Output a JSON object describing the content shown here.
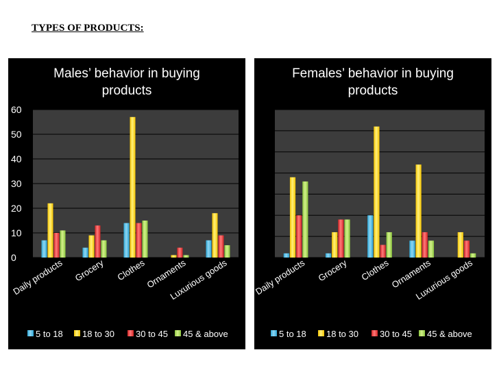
{
  "heading": "TYPES OF PRODUCTS:",
  "chart_data": [
    {
      "type": "bar",
      "title": "Males’ behavior in buying products",
      "title_lines": [
        "Males’ behavior in buying",
        "products"
      ],
      "categories": [
        "Daily products",
        "Grocery",
        "Clothes",
        "Ornaments",
        "Luxurious goods"
      ],
      "series": [
        {
          "name": "5 to 18",
          "values": [
            7,
            4,
            14,
            0,
            7
          ]
        },
        {
          "name": "18 to 30",
          "values": [
            22,
            9,
            57,
            1,
            18
          ]
        },
        {
          "name": "30 to 45",
          "values": [
            10,
            13,
            14,
            4,
            9
          ]
        },
        {
          "name": "45 & above",
          "values": [
            11,
            7,
            15,
            1,
            5
          ]
        }
      ],
      "ylim": [
        0,
        60
      ],
      "yticks": [
        0,
        10,
        20,
        30,
        40,
        50,
        60
      ],
      "show_tick_labels": true,
      "grid": true,
      "legend": "bottom"
    },
    {
      "type": "bar",
      "title": "Females’ behavior in buying products",
      "title_lines": [
        "Females’ behavior in buying",
        "products"
      ],
      "categories": [
        "Daily products",
        "Grocery",
        "Clothes",
        "Ornaments",
        "Luxurious goods"
      ],
      "series": [
        {
          "name": "5 to 18",
          "values": [
            2,
            2,
            20,
            8,
            0
          ]
        },
        {
          "name": "18 to 30",
          "values": [
            38,
            12,
            62,
            44,
            12
          ]
        },
        {
          "name": "30 to 45",
          "values": [
            20,
            18,
            6,
            12,
            8
          ]
        },
        {
          "name": "45 & above",
          "values": [
            36,
            18,
            12,
            8,
            2
          ]
        }
      ],
      "ylim": [
        0,
        70
      ],
      "yticks": [
        0,
        10,
        20,
        30,
        40,
        50,
        60,
        70
      ],
      "show_tick_labels": false,
      "grid": true,
      "legend": "bottom"
    }
  ],
  "colors": {
    "series": [
      "#2ea8d8",
      "#f5c400",
      "#d42424",
      "#8cc63f"
    ],
    "series_light": [
      "#8fd6f2",
      "#fff07a",
      "#ff7a7a",
      "#d3f08a"
    ],
    "plot_bg": "#3c3c3c",
    "panel_bg": "#000000",
    "text": "#ffffff",
    "grid": "#000000"
  }
}
